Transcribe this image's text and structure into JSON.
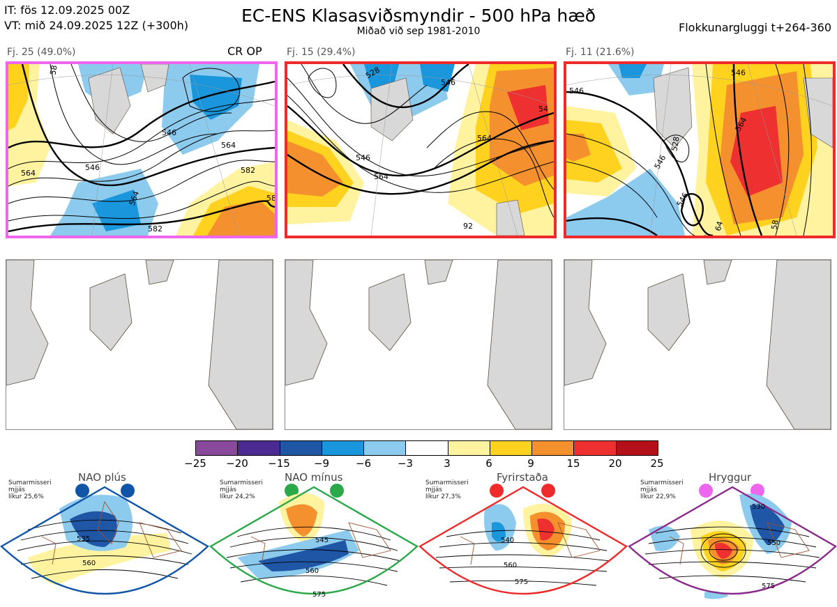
{
  "header": {
    "issue_time": "IT: fös 12.09.2025 00Z",
    "valid_time": "VT: mið 24.09.2025 12Z  (+300h)",
    "title": "EC-ENS Klasasviðsmyndir - 500 hPa hæð",
    "subtitle": "Miðað við sep 1981-2010",
    "cluster_window": "Flokkunargluggi t+264-360"
  },
  "clusters": [
    {
      "label": "Fj. 25 (49.0%)",
      "tag": "CR OP",
      "border_color": "#ee66ee",
      "contours": [
        "546",
        "546",
        "564",
        "564",
        "564",
        "582",
        "58",
        "58",
        "582"
      ]
    },
    {
      "label": "Fj. 15 (29.4%)",
      "tag": "",
      "border_color": "#ee2a2a",
      "contours": [
        "528",
        "546",
        "546",
        "564",
        "564",
        "54",
        "92"
      ]
    },
    {
      "label": "Fj. 11 (21.6%)",
      "tag": "",
      "border_color": "#ee2a2a",
      "contours": [
        "546",
        "546",
        "564",
        "528",
        "546",
        "64",
        "58",
        "546"
      ]
    }
  ],
  "colorbar": {
    "ticks": [
      "−25",
      "−20",
      "−15",
      "−9",
      "−6",
      "−3",
      "3",
      "6",
      "9",
      "15",
      "20",
      "25"
    ],
    "colors": [
      "#8a4a9c",
      "#4b2a92",
      "#1f57a6",
      "#1996dc",
      "#8ccaee",
      "#ffffff",
      "#fff3a0",
      "#ffd21f",
      "#f5902e",
      "#ee3030",
      "#b3101a"
    ]
  },
  "regimes": [
    {
      "name": "NAO plús",
      "season": "Sumarmisseri",
      "region": "mjjás",
      "prob": "líkur 25,6%",
      "dot_color": "#1155a8",
      "border_color": "#1155a8",
      "contours": [
        "535",
        "560"
      ]
    },
    {
      "name": "NAO mínus",
      "season": "Sumarmisseri",
      "region": "mjjás",
      "prob": "líkur 24,2%",
      "dot_color": "#2aa84a",
      "border_color": "#2aa84a",
      "contours": [
        "545",
        "560",
        "575"
      ]
    },
    {
      "name": "Fyrirstaða",
      "season": "Sumarmisseri",
      "region": "mjjás",
      "prob": "líkur 27,3%",
      "dot_color": "#ee2a2a",
      "border_color": "#ee2a2a",
      "contours": [
        "540",
        "560",
        "575"
      ]
    },
    {
      "name": "Hryggur",
      "season": "Sumarmisseri",
      "region": "mjjás",
      "prob": "líkur 22,9%",
      "dot_color": "#ee66ee",
      "border_color": "#8a2a8a",
      "contours": [
        "530",
        "550",
        "575"
      ]
    }
  ]
}
